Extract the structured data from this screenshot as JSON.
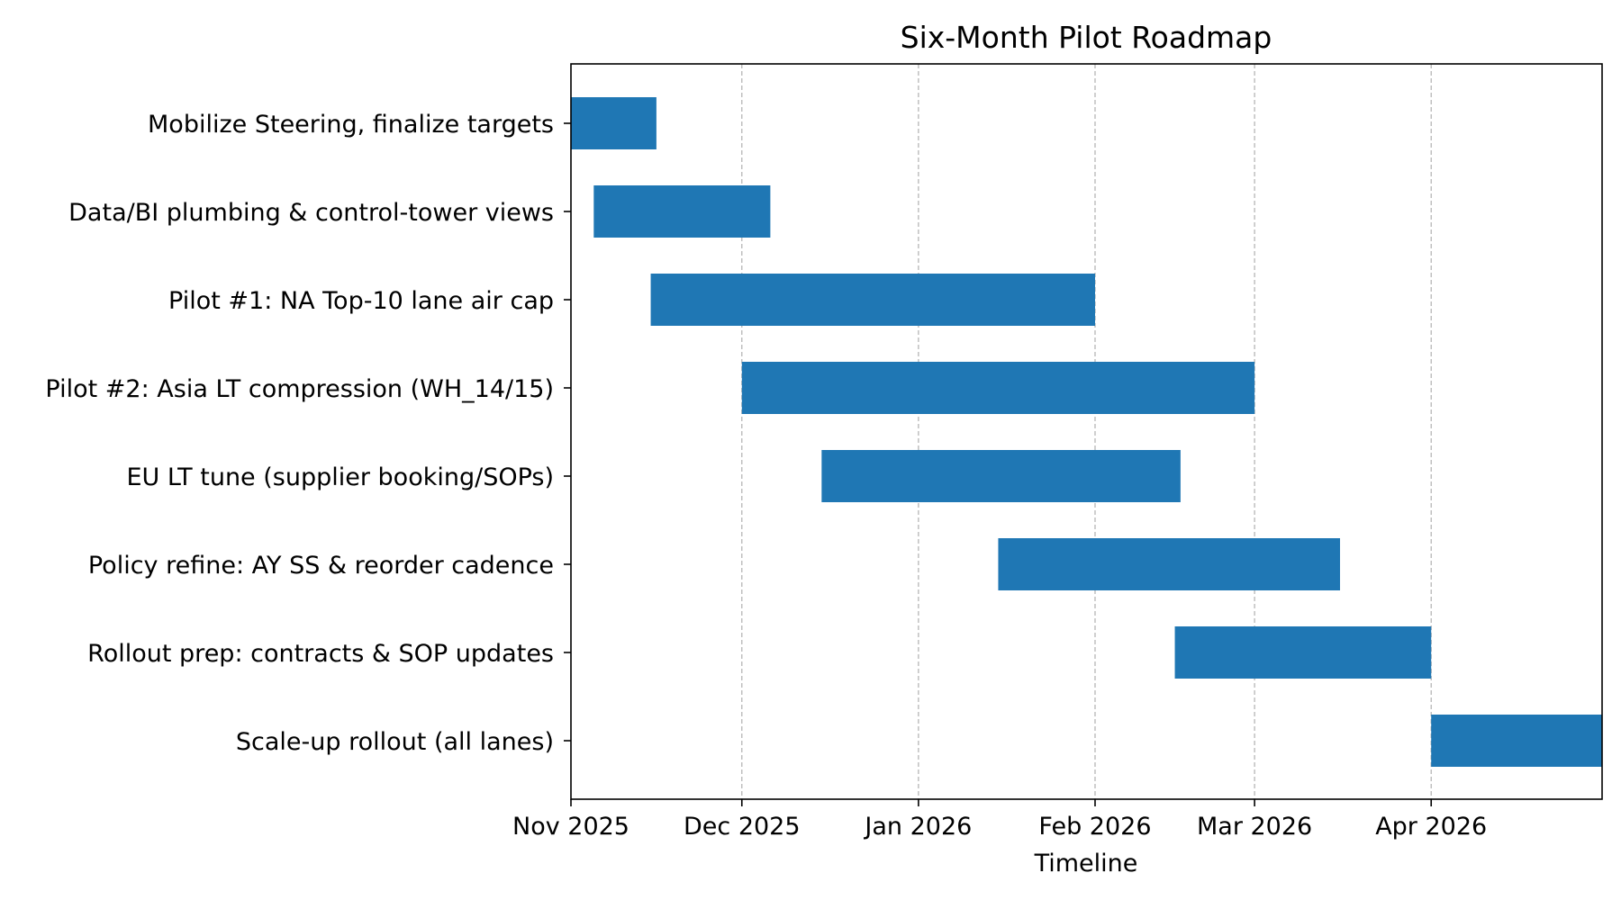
{
  "chart_data": {
    "type": "gantt",
    "title": "Six-Month Pilot Roadmap",
    "xlabel": "Timeline",
    "ylabel": "",
    "bar_color": "#1f77b4",
    "grid": "x-axis dashed",
    "x_axis_type": "date",
    "xlim": [
      "2025-11-01",
      "2026-05-01"
    ],
    "x_ticks": [
      {
        "date": "2025-11-01",
        "label": "Nov 2025"
      },
      {
        "date": "2025-12-01",
        "label": "Dec 2025"
      },
      {
        "date": "2026-01-01",
        "label": "Jan 2026"
      },
      {
        "date": "2026-02-01",
        "label": "Feb 2026"
      },
      {
        "date": "2026-03-01",
        "label": "Mar 2026"
      },
      {
        "date": "2026-04-01",
        "label": "Apr 2026"
      }
    ],
    "tasks": [
      {
        "label": "Mobilize Steering, finalize targets",
        "start": "2025-11-01",
        "end": "2025-11-15"
      },
      {
        "label": "Data/BI plumbing & control-tower views",
        "start": "2025-11-05",
        "end": "2025-12-05"
      },
      {
        "label": "Pilot #1: NA Top-10 lane air cap",
        "start": "2025-11-15",
        "end": "2026-01-31"
      },
      {
        "label": "Pilot #2: Asia LT compression (WH_14/15)",
        "start": "2025-12-01",
        "end": "2026-02-28"
      },
      {
        "label": "EU LT tune (supplier booking/SOPs)",
        "start": "2025-12-15",
        "end": "2026-02-15"
      },
      {
        "label": "Policy refine: AY SS & reorder cadence",
        "start": "2026-01-15",
        "end": "2026-03-15"
      },
      {
        "label": "Rollout prep: contracts & SOP updates",
        "start": "2026-02-15",
        "end": "2026-03-31"
      },
      {
        "label": "Scale-up rollout (all lanes)",
        "start": "2026-04-01",
        "end": "2026-04-30"
      }
    ]
  }
}
